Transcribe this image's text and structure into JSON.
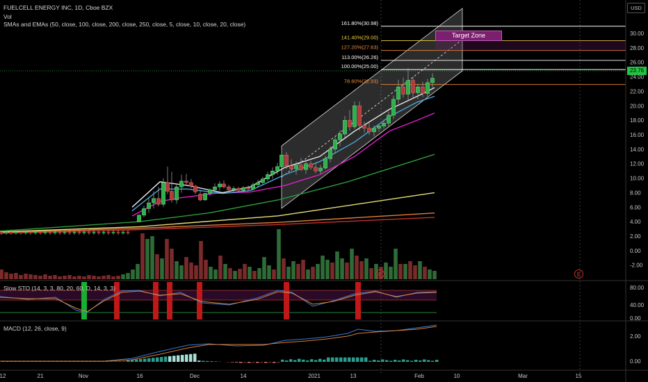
{
  "chart_data": {
    "type": "line",
    "title": "FUELCELL ENERGY INC, 1D, Cboe BZX",
    "currency": "USD",
    "last_price": "23.76",
    "volume_label": "Vol",
    "indicator_legend": "SMAs and EMAs (50, close, 100, close, 200, close, 250, close, 5, close, 10, close, 20, close)",
    "target_zone_label": "Target Zone",
    "earnings_marker": "E",
    "y_ticks": [
      "30.00",
      "28.00",
      "26.00",
      "24.00",
      "22.00",
      "20.00",
      "18.00",
      "16.00",
      "14.00",
      "12.00",
      "10.00",
      "8.00",
      "6.00",
      "4.00",
      "2.00",
      "0.00",
      "-2.00"
    ],
    "ylim": [
      -2.6,
      34.6
    ],
    "x_ticks": [
      "12",
      "21",
      "Nov",
      "16",
      "Dec",
      "14",
      "2021",
      "13",
      "Feb",
      "10",
      "Mar",
      "15"
    ],
    "fib_levels": [
      {
        "label": "161.80%(30.98)",
        "value": 30.98,
        "color": "#ffffff"
      },
      {
        "label": "141.40%(29.00)",
        "value": 29.0,
        "color": "#f5d142"
      },
      {
        "label": "127.20%(27.63)",
        "value": 27.63,
        "color": "#f08c3a"
      },
      {
        "label": "113.00%(26.26)",
        "value": 26.26,
        "color": "#ffffff"
      },
      {
        "label": "100.00%(25.00)",
        "value": 25.0,
        "color": "#ffffff"
      },
      {
        "label": "78.60%(22.93)",
        "value": 22.93,
        "color": "#f08c3a"
      }
    ],
    "moving_averages": [
      {
        "color": "#c63030",
        "values": [
          [
            0,
            2.4
          ],
          [
            200,
            2.9
          ],
          [
            400,
            3.6
          ],
          [
            625,
            4.6
          ]
        ]
      },
      {
        "color": "#e0803a",
        "values": [
          [
            0,
            2.5
          ],
          [
            200,
            3.1
          ],
          [
            400,
            3.9
          ],
          [
            625,
            5.2
          ]
        ]
      },
      {
        "color": "#e8e07a",
        "values": [
          [
            0,
            2.6
          ],
          [
            200,
            3.3
          ],
          [
            400,
            4.8
          ],
          [
            625,
            8.0
          ]
        ]
      },
      {
        "color": "#2e9e3e",
        "values": [
          [
            0,
            2.7
          ],
          [
            200,
            4.0
          ],
          [
            300,
            5.2
          ],
          [
            400,
            7.0
          ],
          [
            500,
            9.5
          ],
          [
            625,
            13.3
          ]
        ]
      },
      {
        "color": "#e020c8",
        "values": [
          [
            190,
            4.8
          ],
          [
            230,
            6.8
          ],
          [
            260,
            7.3
          ],
          [
            310,
            7.9
          ],
          [
            360,
            8.1
          ],
          [
            410,
            9.0
          ],
          [
            460,
            10.5
          ],
          [
            510,
            13.0
          ],
          [
            560,
            16.5
          ],
          [
            600,
            18.0
          ],
          [
            625,
            19.0
          ]
        ]
      },
      {
        "color": "#4aa8d8",
        "values": [
          [
            190,
            5.5
          ],
          [
            230,
            8.5
          ],
          [
            270,
            8.5
          ],
          [
            320,
            7.9
          ],
          [
            360,
            8.3
          ],
          [
            410,
            10.5
          ],
          [
            460,
            12.3
          ],
          [
            510,
            15.0
          ],
          [
            560,
            18.5
          ],
          [
            600,
            20.5
          ],
          [
            625,
            21.3
          ]
        ]
      },
      {
        "color": "#e8e8e8",
        "values": [
          [
            190,
            6.0
          ],
          [
            230,
            9.5
          ],
          [
            270,
            9.0
          ],
          [
            320,
            8.0
          ],
          [
            360,
            8.8
          ],
          [
            410,
            11.5
          ],
          [
            460,
            13.0
          ],
          [
            510,
            16.5
          ],
          [
            560,
            19.5
          ],
          [
            600,
            21.3
          ],
          [
            625,
            22.5
          ]
        ]
      }
    ],
    "candles": [
      [
        200,
        4.0,
        5.0,
        3.9,
        4.9
      ],
      [
        207,
        4.9,
        6.2,
        4.6,
        5.8
      ],
      [
        214,
        5.8,
        7.4,
        5.2,
        6.6
      ],
      [
        221,
        6.6,
        8.2,
        5.8,
        7.2
      ],
      [
        228,
        7.2,
        8.8,
        6.1,
        6.4
      ],
      [
        235,
        6.4,
        10.0,
        6.0,
        9.4
      ],
      [
        241,
        9.4,
        11.6,
        7.8,
        8.2
      ],
      [
        247,
        8.2,
        10.9,
        6.6,
        7.0
      ],
      [
        254,
        7.0,
        9.2,
        6.5,
        8.8
      ],
      [
        261,
        8.8,
        10.5,
        8.0,
        9.6
      ],
      [
        268,
        9.6,
        10.6,
        9.0,
        9.4
      ],
      [
        275,
        9.4,
        9.9,
        8.6,
        8.9
      ],
      [
        281,
        8.9,
        9.1,
        7.8,
        8.1
      ],
      [
        288,
        7.8,
        8.4,
        6.8,
        7.0
      ],
      [
        295,
        7.0,
        8.0,
        6.9,
        7.9
      ],
      [
        302,
        7.9,
        8.6,
        7.6,
        8.4
      ],
      [
        309,
        8.4,
        9.3,
        8.0,
        8.8
      ],
      [
        316,
        8.8,
        9.6,
        8.3,
        9.2
      ],
      [
        322,
        9.2,
        9.7,
        8.6,
        8.8
      ],
      [
        329,
        8.8,
        9.1,
        8.0,
        8.4
      ],
      [
        336,
        8.4,
        8.9,
        8.0,
        8.6
      ],
      [
        343,
        8.6,
        8.8,
        8.1,
        8.3
      ],
      [
        350,
        8.3,
        8.9,
        8.1,
        8.7
      ],
      [
        357,
        8.7,
        9.0,
        8.2,
        8.5
      ],
      [
        364,
        8.5,
        9.4,
        8.3,
        9.1
      ],
      [
        371,
        9.1,
        9.8,
        8.7,
        9.4
      ],
      [
        378,
        9.4,
        10.2,
        9.0,
        9.9
      ],
      [
        385,
        9.9,
        10.9,
        9.6,
        10.5
      ],
      [
        392,
        10.5,
        11.5,
        9.9,
        11.0
      ],
      [
        399,
        11.0,
        12.1,
        10.5,
        11.6
      ],
      [
        405,
        11.6,
        13.8,
        11.3,
        13.2
      ],
      [
        412,
        13.2,
        13.6,
        11.3,
        11.7
      ],
      [
        419,
        11.7,
        12.6,
        11.0,
        11.3
      ],
      [
        426,
        11.3,
        12.3,
        10.5,
        11.8
      ],
      [
        433,
        11.8,
        12.8,
        11.0,
        11.2
      ],
      [
        440,
        11.2,
        12.4,
        10.6,
        12.0
      ],
      [
        447,
        12.0,
        12.4,
        11.2,
        11.5
      ],
      [
        454,
        11.5,
        12.0,
        10.7,
        11.0
      ],
      [
        461,
        11.0,
        11.8,
        10.6,
        11.4
      ],
      [
        468,
        11.4,
        13.1,
        11.2,
        12.7
      ],
      [
        475,
        12.7,
        14.4,
        12.2,
        14.0
      ],
      [
        482,
        14.0,
        15.8,
        13.4,
        15.3
      ],
      [
        489,
        15.3,
        16.6,
        14.4,
        16.1
      ],
      [
        496,
        16.1,
        18.6,
        15.6,
        18.0
      ],
      [
        503,
        18.0,
        19.4,
        16.6,
        17.1
      ],
      [
        510,
        17.1,
        20.6,
        16.8,
        20.0
      ],
      [
        517,
        20.0,
        20.6,
        16.6,
        17.3
      ],
      [
        524,
        17.3,
        17.8,
        16.3,
        16.9
      ],
      [
        531,
        16.9,
        17.6,
        16.0,
        16.4
      ],
      [
        538,
        16.4,
        17.3,
        15.8,
        16.9
      ],
      [
        545,
        16.9,
        17.5,
        16.4,
        17.2
      ],
      [
        552,
        17.2,
        18.1,
        16.8,
        17.6
      ],
      [
        559,
        17.6,
        19.2,
        17.2,
        18.7
      ],
      [
        566,
        18.7,
        21.4,
        18.2,
        20.9
      ],
      [
        573,
        20.9,
        23.6,
        20.3,
        22.6
      ],
      [
        580,
        22.6,
        23.9,
        21.1,
        21.6
      ],
      [
        587,
        21.6,
        25.2,
        20.8,
        23.5
      ],
      [
        594,
        23.5,
        24.0,
        21.0,
        21.8
      ],
      [
        601,
        21.8,
        23.0,
        20.9,
        22.6
      ],
      [
        608,
        22.6,
        23.3,
        21.2,
        21.7
      ],
      [
        615,
        21.7,
        23.7,
        21.3,
        23.2
      ],
      [
        622,
        23.2,
        24.5,
        22.5,
        23.8
      ]
    ],
    "volume": [
      [
        2,
        14,
        0
      ],
      [
        9,
        10,
        0
      ],
      [
        16,
        8,
        0
      ],
      [
        23,
        9,
        0
      ],
      [
        30,
        6,
        0
      ],
      [
        37,
        8,
        0
      ],
      [
        44,
        7,
        0
      ],
      [
        51,
        6,
        0
      ],
      [
        58,
        5,
        0
      ],
      [
        65,
        7,
        0
      ],
      [
        72,
        5,
        0
      ],
      [
        79,
        6,
        0
      ],
      [
        86,
        4,
        0
      ],
      [
        93,
        5,
        0
      ],
      [
        100,
        6,
        0
      ],
      [
        107,
        4,
        0
      ],
      [
        114,
        5,
        0
      ],
      [
        121,
        4,
        0
      ],
      [
        128,
        6,
        0
      ],
      [
        135,
        5,
        0
      ],
      [
        142,
        4,
        0
      ],
      [
        149,
        5,
        0
      ],
      [
        156,
        6,
        0
      ],
      [
        163,
        4,
        0
      ],
      [
        170,
        5,
        0
      ],
      [
        177,
        7,
        1
      ],
      [
        184,
        9,
        1
      ],
      [
        191,
        14,
        1
      ],
      [
        198,
        22,
        1
      ],
      [
        205,
        66,
        0
      ],
      [
        212,
        58,
        1
      ],
      [
        219,
        62,
        1
      ],
      [
        226,
        36,
        0
      ],
      [
        233,
        30,
        1
      ],
      [
        240,
        58,
        0
      ],
      [
        247,
        44,
        0
      ],
      [
        254,
        26,
        1
      ],
      [
        261,
        20,
        1
      ],
      [
        268,
        32,
        0
      ],
      [
        275,
        24,
        0
      ],
      [
        282,
        20,
        0
      ],
      [
        289,
        55,
        0
      ],
      [
        296,
        28,
        0
      ],
      [
        303,
        18,
        1
      ],
      [
        310,
        14,
        1
      ],
      [
        317,
        34,
        0
      ],
      [
        324,
        22,
        1
      ],
      [
        331,
        16,
        0
      ],
      [
        338,
        12,
        1
      ],
      [
        345,
        15,
        0
      ],
      [
        352,
        22,
        0
      ],
      [
        359,
        18,
        1
      ],
      [
        366,
        12,
        0
      ],
      [
        373,
        16,
        1
      ],
      [
        380,
        32,
        1
      ],
      [
        387,
        20,
        1
      ],
      [
        394,
        14,
        0
      ],
      [
        401,
        72,
        1
      ],
      [
        408,
        30,
        0
      ],
      [
        415,
        18,
        1
      ],
      [
        422,
        26,
        1
      ],
      [
        429,
        22,
        0
      ],
      [
        436,
        28,
        0
      ],
      [
        443,
        14,
        1
      ],
      [
        450,
        18,
        0
      ],
      [
        457,
        22,
        1
      ],
      [
        464,
        34,
        1
      ],
      [
        471,
        28,
        1
      ],
      [
        478,
        24,
        0
      ],
      [
        485,
        40,
        1
      ],
      [
        492,
        30,
        1
      ],
      [
        499,
        24,
        0
      ],
      [
        506,
        44,
        1
      ],
      [
        513,
        34,
        0
      ],
      [
        520,
        26,
        0
      ],
      [
        527,
        30,
        1
      ],
      [
        534,
        16,
        0
      ],
      [
        541,
        22,
        1
      ],
      [
        548,
        18,
        0
      ],
      [
        555,
        24,
        1
      ],
      [
        562,
        18,
        1
      ],
      [
        569,
        44,
        1
      ],
      [
        576,
        22,
        0
      ],
      [
        583,
        22,
        1
      ],
      [
        590,
        26,
        0
      ],
      [
        597,
        20,
        0
      ],
      [
        604,
        26,
        1
      ],
      [
        611,
        18,
        0
      ],
      [
        618,
        14,
        1
      ],
      [
        625,
        12,
        1
      ]
    ],
    "stoch_ticks": [
      "80.00",
      "40.00",
      "0.00"
    ],
    "stoch_legend": "Slow STO (14, 3, 3, 80, 20, 60, D, 14, 3, 3)",
    "macd_ticks": [
      "2.00",
      "0.00"
    ],
    "macd_legend": "MACD (12, 26, close, 9)"
  }
}
